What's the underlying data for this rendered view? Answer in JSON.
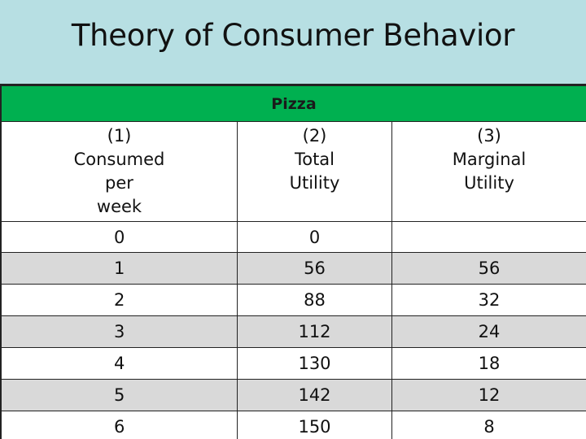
{
  "title": "Theory of Consumer Behavior",
  "table": {
    "banner": "Pizza",
    "headers": [
      {
        "lines": [
          "(1)",
          "Consumed",
          "per",
          "week"
        ]
      },
      {
        "lines": [
          "(2)",
          "Total",
          "Utility"
        ]
      },
      {
        "lines": [
          "(3)",
          "Marginal",
          "Utility"
        ]
      }
    ],
    "rows": [
      {
        "consumed": "0",
        "total": "0",
        "marginal": ""
      },
      {
        "consumed": "1",
        "total": "56",
        "marginal": "56"
      },
      {
        "consumed": "2",
        "total": "88",
        "marginal": "32"
      },
      {
        "consumed": "3",
        "total": "112",
        "marginal": "24"
      },
      {
        "consumed": "4",
        "total": "130",
        "marginal": "18"
      },
      {
        "consumed": "5",
        "total": "142",
        "marginal": "12"
      },
      {
        "consumed": "6",
        "total": "150",
        "marginal": "8"
      }
    ]
  },
  "colors": {
    "background": "#b7dfe3",
    "banner": "#00b050",
    "row_alt": "#d9d9d9"
  }
}
